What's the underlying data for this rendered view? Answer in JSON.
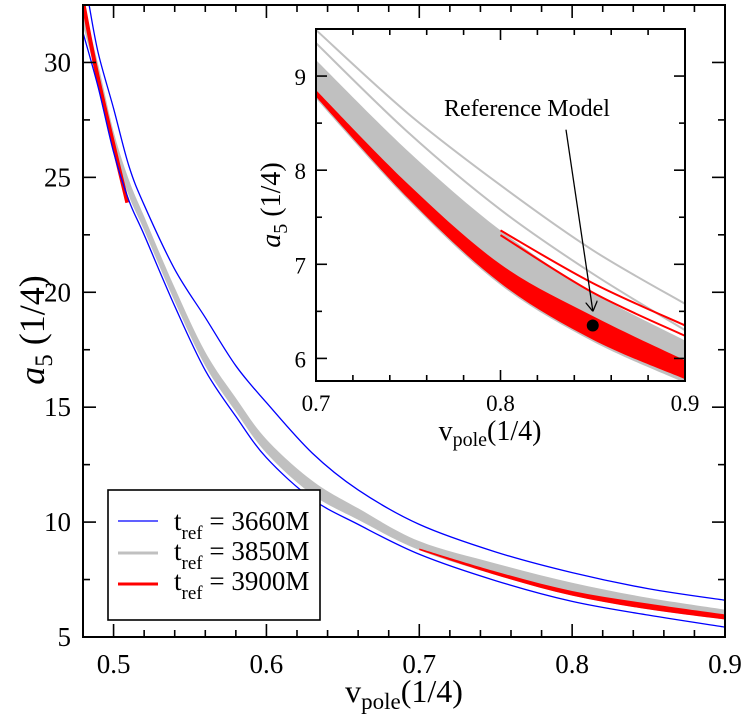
{
  "chart_data": [
    {
      "type": "line",
      "panel": "main",
      "xlim": [
        0.48,
        0.9
      ],
      "ylim": [
        5,
        32.5
      ],
      "xticks": [
        0.5,
        0.6,
        0.7,
        0.8,
        0.9
      ],
      "xminor_step": 0.02,
      "yticks": [
        5,
        10,
        15,
        20,
        25,
        30
      ],
      "yminor_step": 2.5,
      "grid": false,
      "xlabel": {
        "base": "v",
        "sub": "pole",
        "suffix": "(1/4)"
      },
      "ylabel": {
        "base": "a",
        "sub": "5",
        "suffix": " (1/4)"
      },
      "legend_position": "bottom-left",
      "legend": [
        {
          "t": "t",
          "sub": "ref",
          "value": " = 3660M",
          "color": "#0000ff"
        },
        {
          "t": "t",
          "sub": "ref",
          "value": " = 3850M",
          "color": "#c0c0c0"
        },
        {
          "t": "t",
          "sub": "ref",
          "value": " = 3900M",
          "color": "#ff0000"
        }
      ],
      "series": [
        {
          "name": "t_ref = 3850M",
          "color": "#c0c0c0",
          "bands": [
            {
              "x": [
                0.48,
                0.49,
                0.5,
                0.51,
                0.52,
                0.54,
                0.56,
                0.58,
                0.6,
                0.63,
                0.66,
                0.7,
                0.75,
                0.8,
                0.85,
                0.9
              ],
              "lower": [
                31.6,
                29.1,
                26.3,
                24.2,
                22.7,
                19.6,
                16.8,
                14.8,
                13.0,
                11.2,
                10.1,
                8.78,
                7.7,
                6.8,
                6.2,
                5.76
              ],
              "upper": [
                32.6,
                29.9,
                27.0,
                24.9,
                23.3,
                20.2,
                17.4,
                15.4,
                13.6,
                11.8,
                10.6,
                9.17,
                8.2,
                7.36,
                6.7,
                6.19
              ]
            }
          ],
          "curves": []
        },
        {
          "name": "t_ref = 3900M",
          "color": "#ff0000",
          "bands": [
            {
              "x": [
                0.7,
                0.75,
                0.8,
                0.85,
                0.9
              ],
              "lower": [
                8.78,
                7.7,
                6.8,
                6.2,
                5.76
              ],
              "upper": [
                8.85,
                7.85,
                7.0,
                6.45,
                5.98
              ]
            }
          ],
          "curves": [
            {
              "x": [
                0.4804,
                0.4876,
                0.495,
                0.505,
                0.509
              ],
              "y": [
                32.5,
                30,
                27.8,
                25,
                23.9
              ],
              "width": 4
            }
          ]
        },
        {
          "name": "t_ref = 3660M",
          "color": "#0000ff",
          "bands": [],
          "curves": [
            {
              "x": [
                0.48,
                0.49,
                0.5,
                0.51,
                0.52,
                0.54,
                0.56,
                0.58,
                0.6,
                0.63,
                0.66,
                0.7,
                0.75,
                0.8,
                0.85,
                0.9
              ],
              "y": [
                31.3,
                28.9,
                26.1,
                24.0,
                22.5,
                19.4,
                16.6,
                14.6,
                12.8,
                11.0,
                9.9,
                8.6,
                7.45,
                6.55,
                5.95,
                5.43
              ],
              "width": 1.3
            },
            {
              "x": [
                0.484,
                0.49,
                0.5,
                0.51,
                0.52,
                0.54,
                0.56,
                0.58,
                0.6,
                0.63,
                0.66,
                0.7,
                0.75,
                0.8,
                0.85,
                0.9
              ],
              "y": [
                32.5,
                30.4,
                28.0,
                25.5,
                23.8,
                21.0,
                18.9,
                16.8,
                15.2,
                13.0,
                11.4,
                9.9,
                8.7,
                7.8,
                7.1,
                6.6
              ],
              "width": 1.3
            }
          ]
        }
      ]
    },
    {
      "type": "line",
      "panel": "inset",
      "xlim": [
        0.7,
        0.9
      ],
      "ylim": [
        5.76,
        9.5
      ],
      "xticks": [
        0.7,
        0.8,
        0.9
      ],
      "xminor_step": 0.02,
      "yticks": [
        6,
        7,
        8,
        9
      ],
      "yminor_step": 0.5,
      "grid": false,
      "xlabel": {
        "base": "v",
        "sub": "pole",
        "suffix": "(1/4)"
      },
      "ylabel": {
        "base": "a",
        "sub": "5",
        "suffix": " (1/4)"
      },
      "annotation": {
        "text": "Reference Model",
        "arrow_from": [
          0.8355,
          8.43
        ],
        "arrow_to": [
          0.85,
          6.51
        ]
      },
      "reference_point": {
        "x": 0.85,
        "y": 6.35,
        "color": "#000000"
      },
      "series": [
        {
          "name": "t_ref = 3850M",
          "color": "#c0c0c0",
          "bands": [
            {
              "x": [
                0.7,
                0.75,
                0.8,
                0.85,
                0.9
              ],
              "lower": [
                8.76,
                7.68,
                6.78,
                6.18,
                5.74
              ],
              "upper": [
                9.17,
                8.2,
                7.36,
                6.7,
                6.19
              ]
            }
          ],
          "curves": [
            {
              "x": [
                0.7,
                0.75,
                0.8,
                0.85,
                0.9
              ],
              "y": [
                9.49,
                8.6,
                7.84,
                7.15,
                6.58
              ],
              "width": 2
            },
            {
              "x": [
                0.7,
                0.75,
                0.8,
                0.85,
                0.9
              ],
              "y": [
                9.35,
                8.4,
                7.58,
                6.9,
                6.3
              ],
              "width": 2
            }
          ]
        },
        {
          "name": "t_ref = 3900M",
          "color": "#ff0000",
          "bands": [
            {
              "x": [
                0.7,
                0.75,
                0.8,
                0.85,
                0.9
              ],
              "lower": [
                8.78,
                7.7,
                6.8,
                6.2,
                5.78
              ],
              "upper": [
                8.85,
                7.85,
                7.0,
                6.45,
                5.98
              ]
            }
          ],
          "curves": [
            {
              "x": [
                0.8,
                0.85,
                0.9
              ],
              "y": [
                7.36,
                6.8,
                6.35
              ],
              "width": 2
            },
            {
              "x": [
                0.8,
                0.85,
                0.9
              ],
              "y": [
                7.31,
                6.7,
                6.24
              ],
              "width": 2
            }
          ]
        }
      ]
    }
  ]
}
